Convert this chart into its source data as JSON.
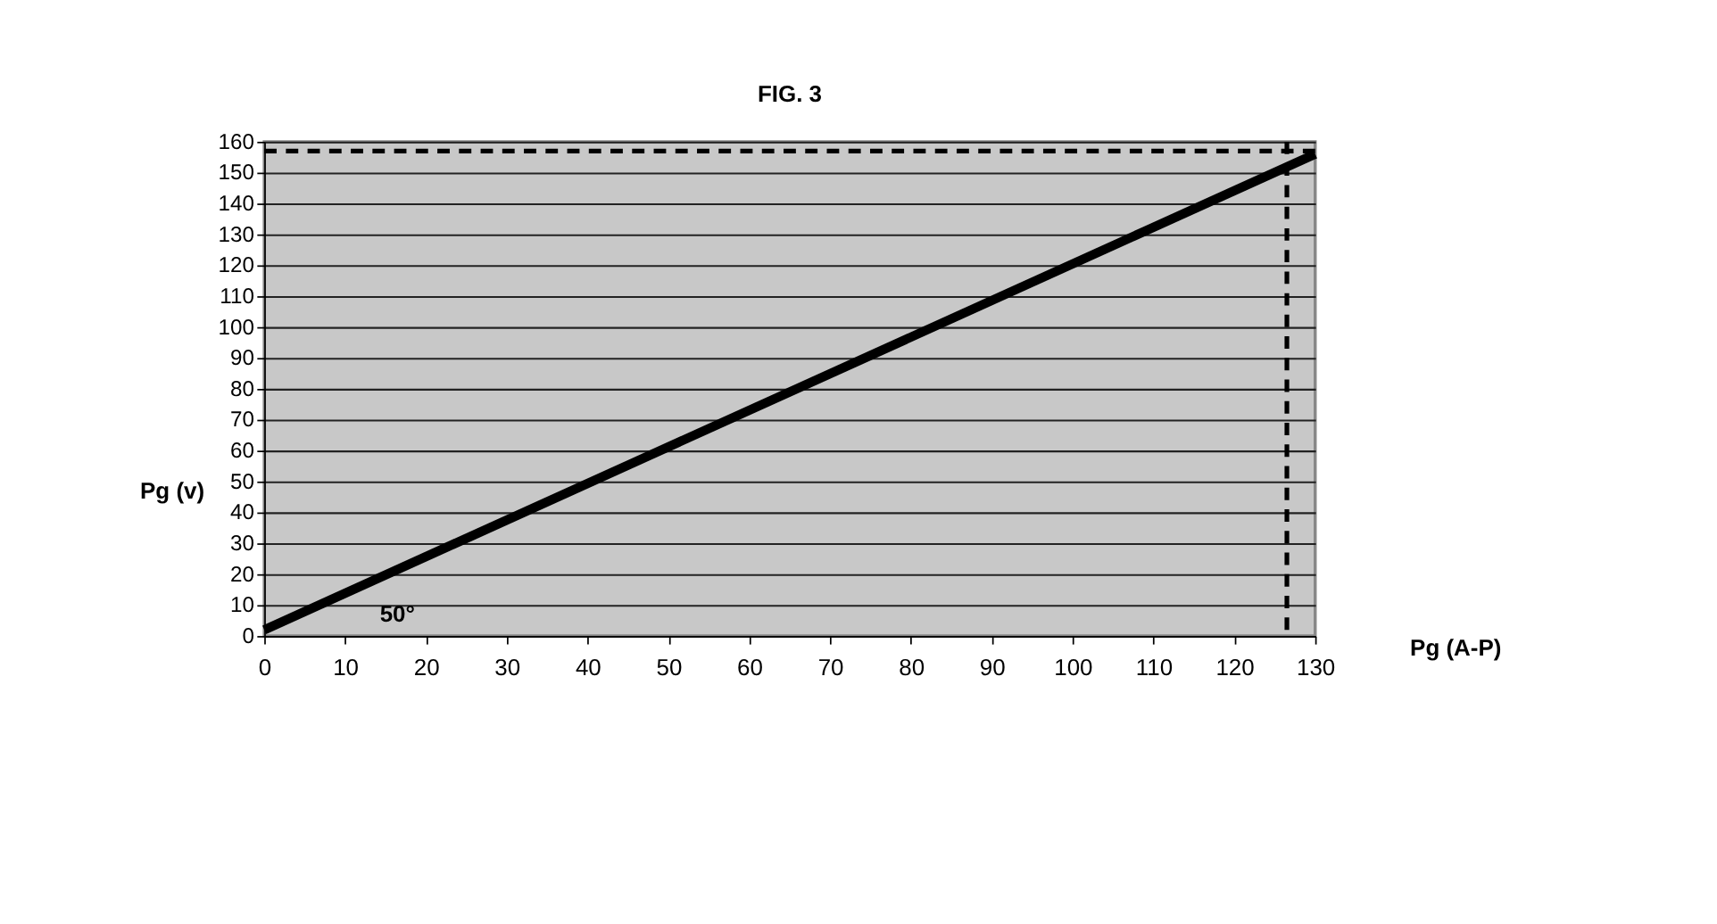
{
  "chart_data": {
    "type": "line",
    "title": "FIG. 3",
    "xlabel": "Pg (A-P)",
    "ylabel": "Pg (v)",
    "x": [
      0,
      130
    ],
    "series": [
      {
        "color": "#000000",
        "values": [
          2,
          156
        ]
      }
    ],
    "xlim": [
      0,
      130
    ],
    "xticks": [
      0,
      10,
      20,
      30,
      40,
      50,
      60,
      70,
      80,
      90,
      100,
      110,
      120,
      130
    ],
    "ylim": [
      0,
      160
    ],
    "yticks": [
      0,
      10,
      20,
      30,
      40,
      50,
      60,
      70,
      80,
      90,
      100,
      110,
      120,
      130,
      140,
      150,
      160
    ],
    "grid": "y",
    "marker": "none",
    "line_style": "solid",
    "ref_lines": [
      {
        "axis": "y",
        "value": 157,
        "color": "#000000",
        "line_style": "dashed"
      },
      {
        "axis": "x",
        "value": 126.5,
        "color": "#000000",
        "line_style": "dashed"
      }
    ],
    "annotations": [
      "50°"
    ]
  }
}
